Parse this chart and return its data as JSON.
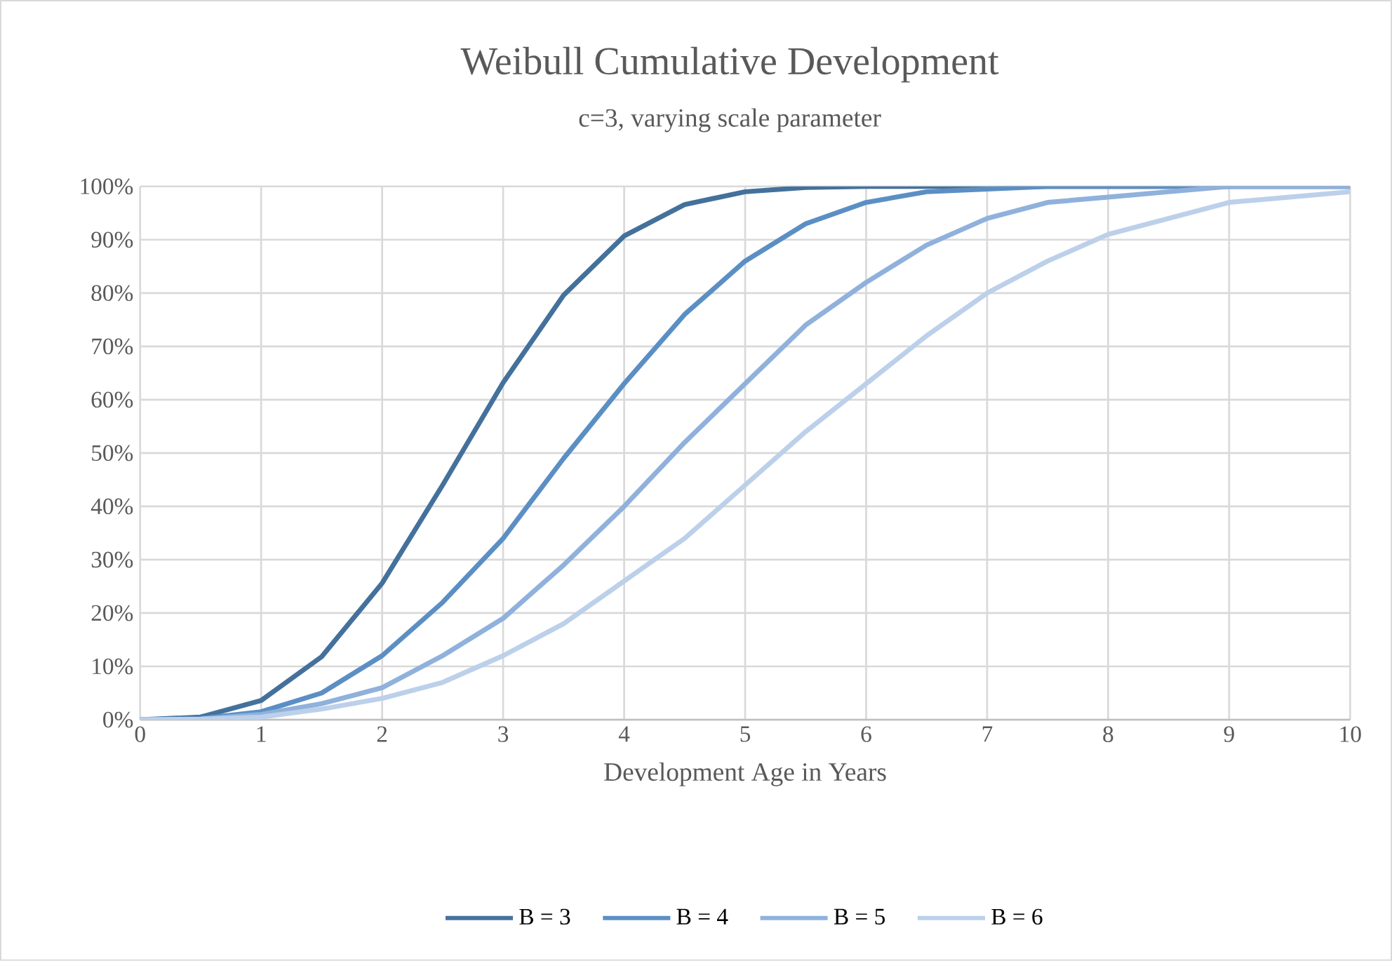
{
  "chart_data": {
    "type": "line",
    "title": "Weibull Cumulative Development",
    "subtitle": "c=3, varying scale parameter",
    "xlabel": "Development Age in Years",
    "x": [
      0,
      0.5,
      1,
      1.5,
      2,
      2.5,
      3,
      3.5,
      4,
      4.5,
      5,
      5.5,
      6,
      6.5,
      7,
      7.5,
      8,
      8.5,
      9,
      9.5,
      10
    ],
    "series": [
      {
        "name": "B = 3",
        "color": "#44719c",
        "values": [
          0,
          0.5,
          3.6,
          11.8,
          25.6,
          44,
          63.2,
          79.6,
          90.7,
          96.6,
          99,
          99.8,
          100,
          100,
          100,
          100,
          100,
          100,
          100,
          100,
          100
        ]
      },
      {
        "name": "B = 4",
        "color": "#5b8fc4",
        "values": [
          0,
          0.2,
          1.5,
          5,
          12,
          22,
          34,
          49,
          63,
          76,
          86,
          93,
          97,
          99,
          99.5,
          100,
          100,
          100,
          100,
          100,
          100
        ]
      },
      {
        "name": "B = 5",
        "color": "#8fb1dc",
        "values": [
          0,
          0.1,
          1,
          3,
          6,
          12,
          19,
          29,
          40,
          52,
          63,
          74,
          82,
          89,
          94,
          97,
          98,
          99,
          100,
          100,
          100
        ]
      },
      {
        "name": "B = 6",
        "color": "#bcd0ea",
        "values": [
          0,
          0.1,
          0.5,
          2,
          4,
          7,
          12,
          18,
          26,
          34,
          44,
          54,
          63,
          72,
          80,
          86,
          91,
          94,
          97,
          98,
          99
        ]
      }
    ],
    "xlim": [
      0,
      10
    ],
    "xticks": [
      0,
      1,
      2,
      3,
      4,
      5,
      6,
      7,
      8,
      9,
      10
    ],
    "ylim": [
      0,
      100
    ],
    "yticks": [
      {
        "value": 0,
        "label": "0%"
      },
      {
        "value": 10,
        "label": "10%"
      },
      {
        "value": 20,
        "label": "20%"
      },
      {
        "value": 30,
        "label": "30%"
      },
      {
        "value": 40,
        "label": "40%"
      },
      {
        "value": 50,
        "label": "50%"
      },
      {
        "value": 60,
        "label": "60%"
      },
      {
        "value": 70,
        "label": "70%"
      },
      {
        "value": 80,
        "label": "80%"
      },
      {
        "value": 90,
        "label": "90%"
      },
      {
        "value": 100,
        "label": "100%"
      }
    ],
    "grid": true,
    "legend": "bottom",
    "marker": "none",
    "line_style": "solid"
  }
}
